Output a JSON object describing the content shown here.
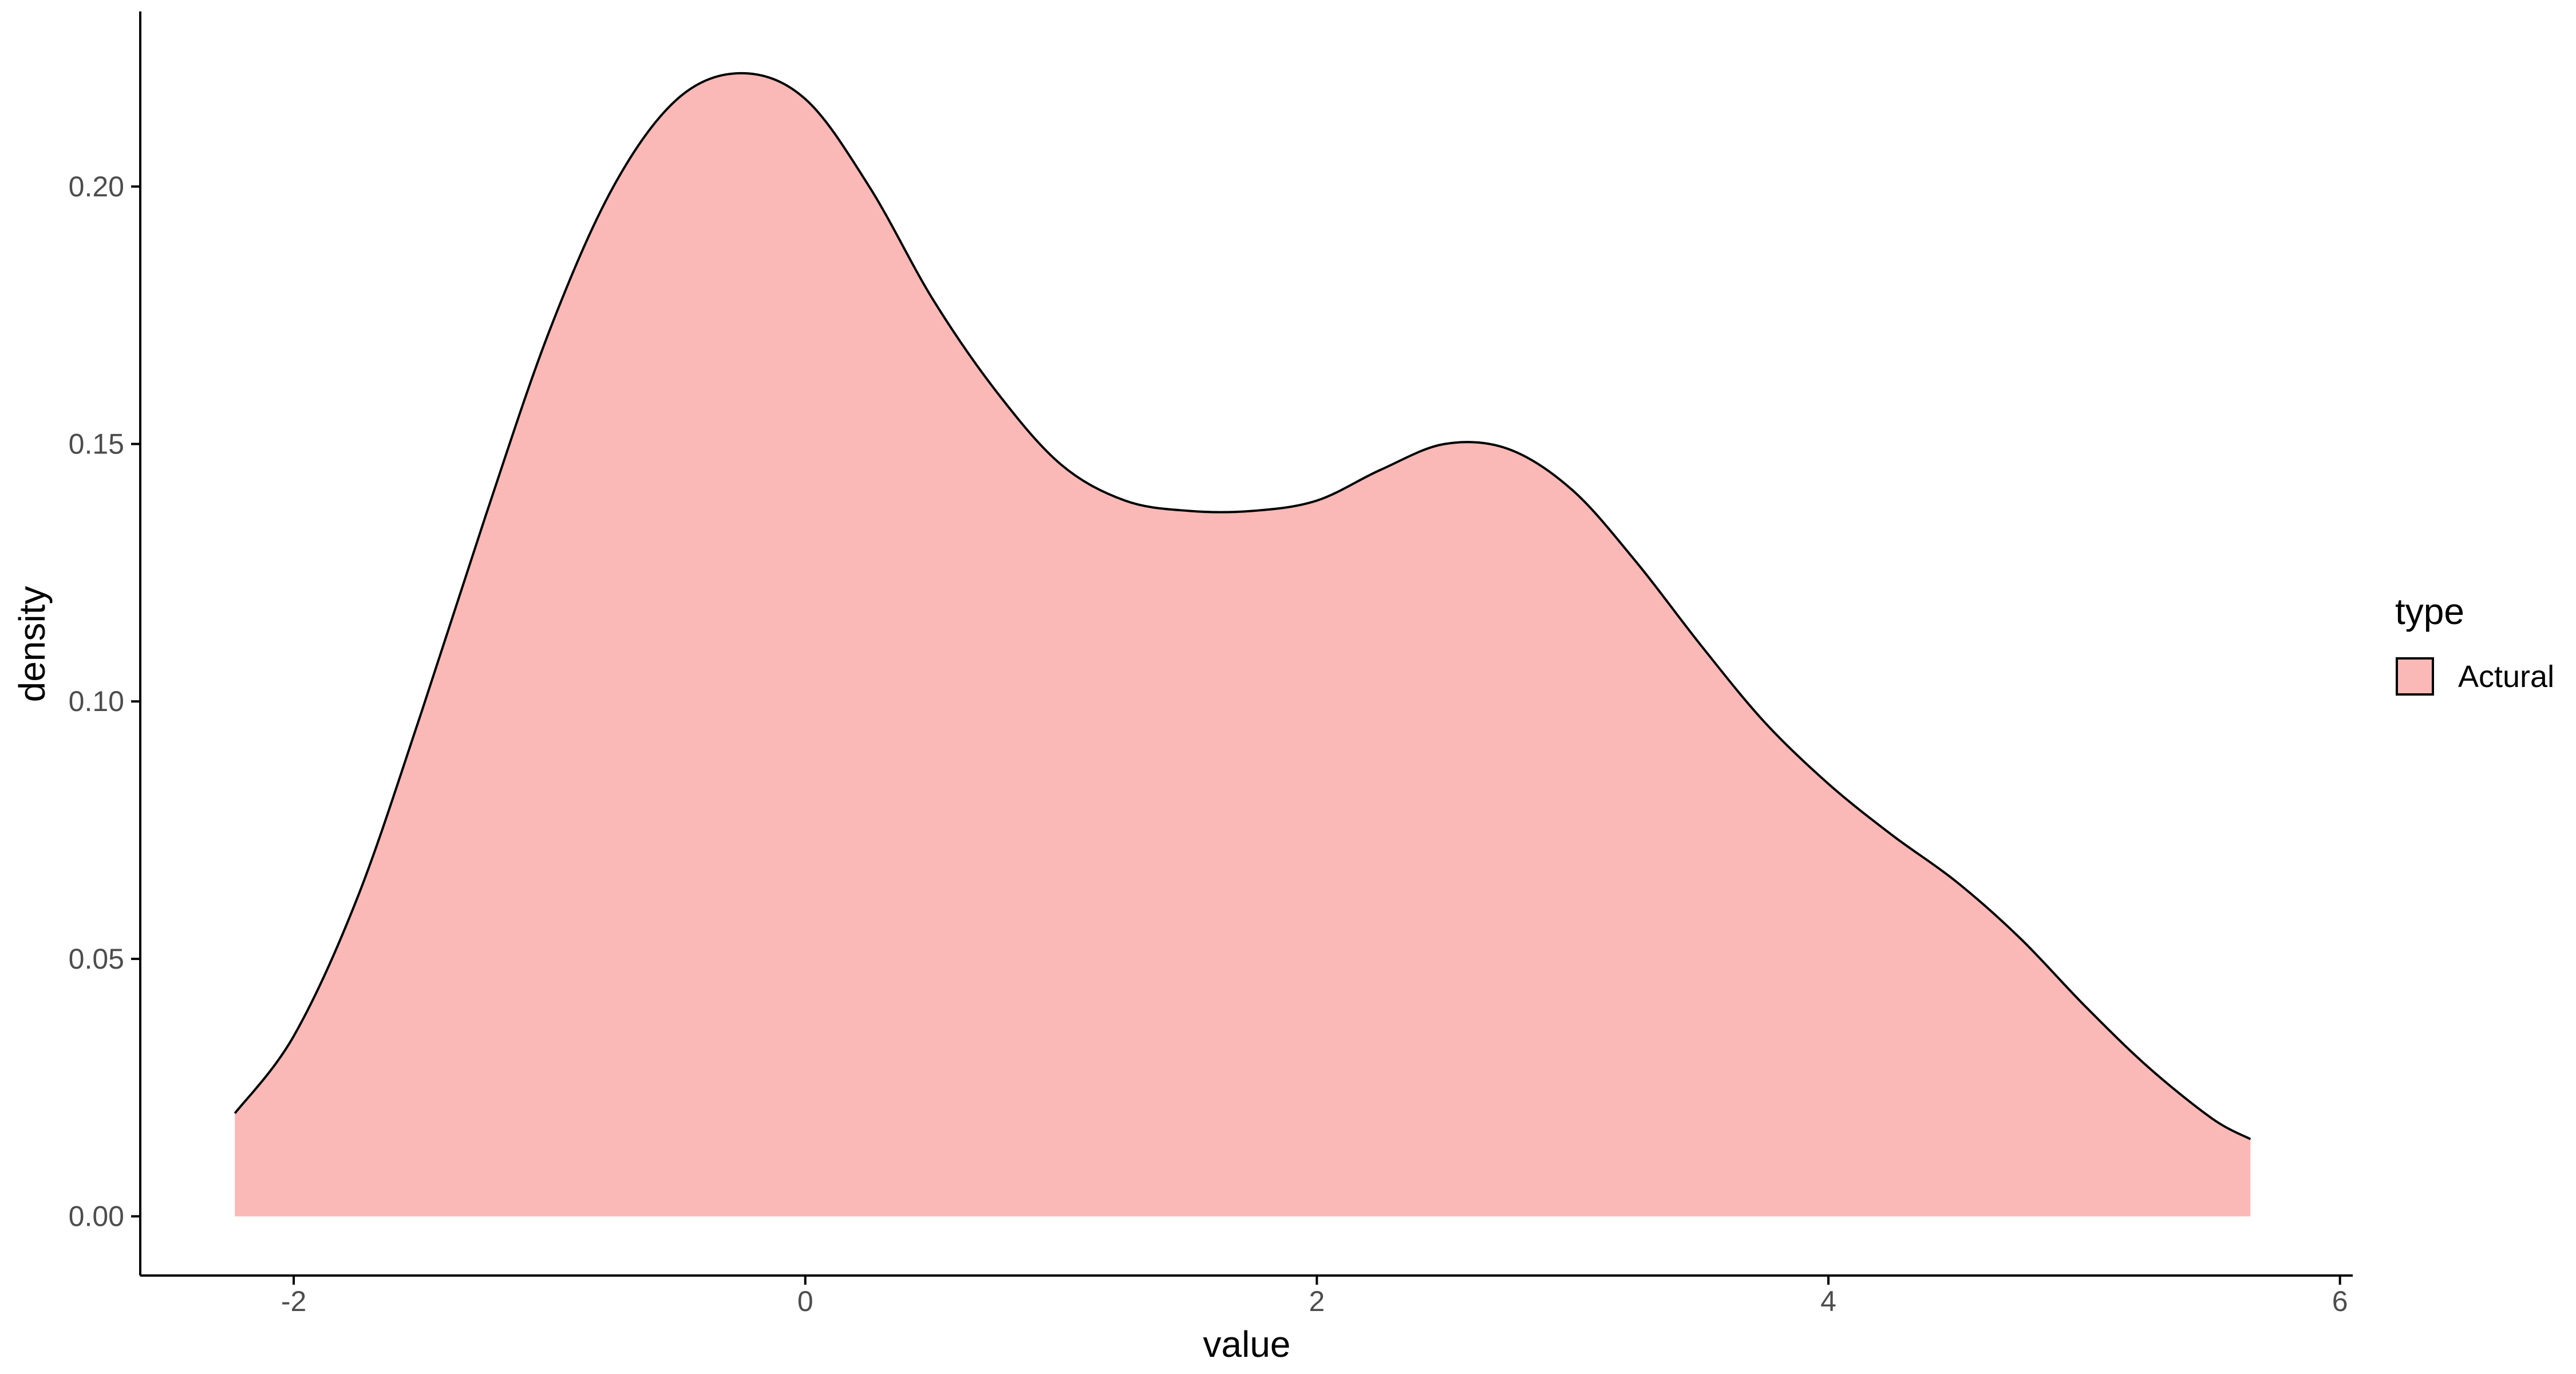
{
  "chart_data": {
    "type": "area",
    "xlabel": "value",
    "ylabel": "density",
    "xlim": [
      -2.6,
      6.05
    ],
    "ylim": [
      -0.0115,
      0.234
    ],
    "x_ticks": [
      "-2",
      "0",
      "2",
      "4",
      "6"
    ],
    "x_tick_values": [
      -2,
      0,
      2,
      4,
      6
    ],
    "y_ticks": [
      "0.00",
      "0.05",
      "0.10",
      "0.15",
      "0.20"
    ],
    "y_tick_values": [
      0.0,
      0.05,
      0.1,
      0.15,
      0.2
    ],
    "grid": false,
    "legend": {
      "title": "type",
      "placement": "right",
      "entries": [
        "Actural"
      ]
    },
    "series": [
      {
        "name": "Actural",
        "color": "#F8766D",
        "fill": "#FAB9B6",
        "x": [
          -2.23,
          -2.0,
          -1.75,
          -1.5,
          -1.25,
          -1.0,
          -0.75,
          -0.5,
          -0.25,
          0.0,
          0.25,
          0.5,
          0.75,
          1.0,
          1.25,
          1.5,
          1.75,
          2.0,
          2.25,
          2.5,
          2.75,
          3.0,
          3.25,
          3.5,
          3.75,
          4.0,
          4.25,
          4.5,
          4.75,
          5.0,
          5.25,
          5.5,
          5.65
        ],
        "y": [
          0.02,
          0.035,
          0.062,
          0.098,
          0.136,
          0.172,
          0.2,
          0.217,
          0.222,
          0.217,
          0.2,
          0.178,
          0.16,
          0.146,
          0.139,
          0.137,
          0.137,
          0.139,
          0.145,
          0.15,
          0.149,
          0.141,
          0.127,
          0.111,
          0.096,
          0.084,
          0.074,
          0.065,
          0.054,
          0.041,
          0.029,
          0.019,
          0.015
        ]
      }
    ]
  }
}
